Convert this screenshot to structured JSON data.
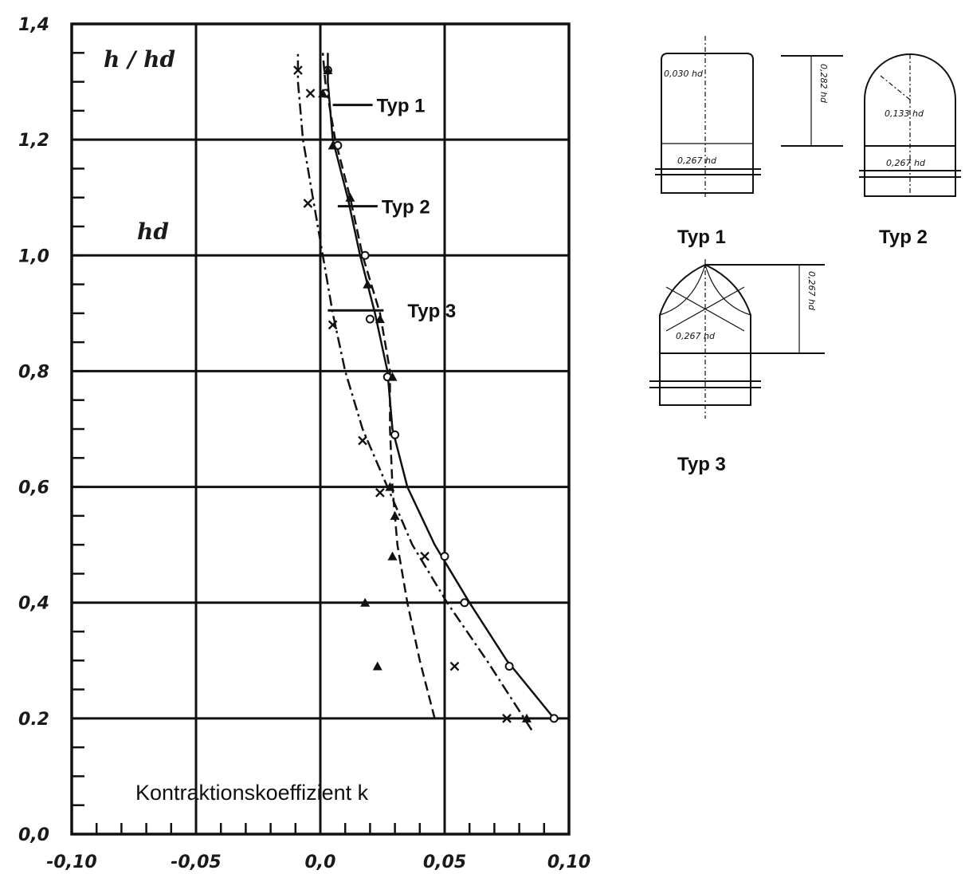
{
  "chart_data": {
    "type": "line",
    "xlabel": "Kontraktionskoeffizient k",
    "ylabel": "h / hd",
    "y_marker_label": "hd",
    "xlim": [
      -0.1,
      0.1
    ],
    "ylim": [
      0.0,
      1.4
    ],
    "x_tick_labels": [
      "-0,10",
      "-0,05",
      "0,0",
      "0,05",
      "0,10"
    ],
    "x_ticks": [
      -0.1,
      -0.05,
      0.0,
      0.05,
      0.1
    ],
    "y_tick_labels": [
      "0,0",
      "0.2",
      "0,4",
      "0,6",
      "0,8",
      "1,0",
      "1,2",
      "1,4"
    ],
    "y_ticks": [
      0.0,
      0.2,
      0.4,
      0.6,
      0.8,
      1.0,
      1.2,
      1.4
    ],
    "grid": true,
    "series": [
      {
        "name": "Typ 1",
        "style": "solid",
        "marker": "circle",
        "curve": [
          [
            0.094,
            0.2
          ],
          [
            0.075,
            0.3
          ],
          [
            0.06,
            0.4
          ],
          [
            0.046,
            0.5
          ],
          [
            0.035,
            0.6
          ],
          [
            0.029,
            0.7
          ],
          [
            0.027,
            0.8
          ],
          [
            0.022,
            0.9
          ],
          [
            0.016,
            1.0
          ],
          [
            0.011,
            1.1
          ],
          [
            0.005,
            1.2
          ],
          [
            0.003,
            1.3
          ],
          [
            0.003,
            1.35
          ]
        ],
        "points": [
          [
            0.094,
            0.2
          ],
          [
            0.076,
            0.29
          ],
          [
            0.058,
            0.4
          ],
          [
            0.05,
            0.48
          ],
          [
            0.03,
            0.69
          ],
          [
            0.027,
            0.79
          ],
          [
            0.02,
            0.89
          ],
          [
            0.018,
            1.0
          ],
          [
            0.007,
            1.19
          ],
          [
            0.003,
            1.32
          ],
          [
            0.002,
            1.28
          ]
        ]
      },
      {
        "name": "Typ 2",
        "style": "dash-dot",
        "marker": "cross",
        "curve": [
          [
            0.085,
            0.18
          ],
          [
            0.067,
            0.3
          ],
          [
            0.051,
            0.4
          ],
          [
            0.037,
            0.5
          ],
          [
            0.027,
            0.6
          ],
          [
            0.017,
            0.7
          ],
          [
            0.01,
            0.8
          ],
          [
            0.005,
            0.9
          ],
          [
            0.001,
            1.0
          ],
          [
            -0.003,
            1.1
          ],
          [
            -0.007,
            1.2
          ],
          [
            -0.009,
            1.3
          ],
          [
            -0.009,
            1.35
          ]
        ],
        "points": [
          [
            0.075,
            0.2
          ],
          [
            0.054,
            0.29
          ],
          [
            0.042,
            0.48
          ],
          [
            0.024,
            0.59
          ],
          [
            0.017,
            0.68
          ],
          [
            0.005,
            0.88
          ],
          [
            -0.005,
            1.09
          ],
          [
            -0.004,
            1.28
          ],
          [
            -0.009,
            1.32
          ]
        ]
      },
      {
        "name": "Typ 3",
        "style": "dashed",
        "marker": "triangle",
        "curve": [
          [
            0.046,
            0.2
          ],
          [
            0.04,
            0.3
          ],
          [
            0.035,
            0.4
          ],
          [
            0.031,
            0.5
          ],
          [
            0.029,
            0.6
          ],
          [
            0.028,
            0.7
          ],
          [
            0.028,
            0.8
          ],
          [
            0.024,
            0.9
          ],
          [
            0.017,
            1.0
          ],
          [
            0.012,
            1.1
          ],
          [
            0.006,
            1.2
          ],
          [
            0.002,
            1.3
          ],
          [
            0.001,
            1.35
          ]
        ],
        "points": [
          [
            0.083,
            0.2
          ],
          [
            0.023,
            0.29
          ],
          [
            0.018,
            0.4
          ],
          [
            0.029,
            0.48
          ],
          [
            0.03,
            0.55
          ],
          [
            0.028,
            0.6
          ],
          [
            0.029,
            0.79
          ],
          [
            0.024,
            0.89
          ],
          [
            0.019,
            0.95
          ],
          [
            0.012,
            1.1
          ],
          [
            0.005,
            1.19
          ],
          [
            0.001,
            1.28
          ],
          [
            0.003,
            1.32
          ]
        ]
      }
    ],
    "annotations": [
      {
        "label": "Typ 1",
        "x": 0.005,
        "y": 1.26,
        "series": "Typ 1"
      },
      {
        "label": "Typ 2",
        "x": 0.007,
        "y": 1.085,
        "series": "Typ 2"
      },
      {
        "label": "Typ 3",
        "x": 0.003,
        "y": 0.905,
        "series": "Typ 3"
      }
    ]
  },
  "diagrams": {
    "typ1": {
      "label": "Typ 1",
      "dims": [
        "0,030 hd",
        "0,267 hd",
        "0,282 hd"
      ]
    },
    "typ2": {
      "label": "Typ 2",
      "dims": [
        "0,133 hd",
        "0,267 hd"
      ]
    },
    "typ3": {
      "label": "Typ 3",
      "dims": [
        "0,267 hd",
        "0,267 hd"
      ]
    }
  }
}
